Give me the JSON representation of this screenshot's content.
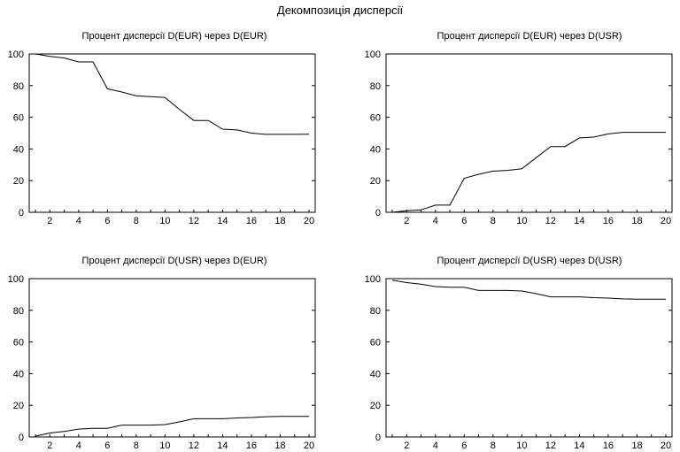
{
  "title": "Декомпозиція дисперсії",
  "chart_data": [
    {
      "type": "line",
      "title": "Процент дисперсії D(EUR) через D(EUR)",
      "xlabel": "",
      "ylabel": "",
      "xlim": [
        1,
        20
      ],
      "ylim": [
        0,
        100
      ],
      "x": [
        1,
        2,
        3,
        4,
        5,
        6,
        7,
        8,
        9,
        10,
        11,
        12,
        13,
        14,
        15,
        16,
        17,
        18,
        19,
        20
      ],
      "xticks": [
        "2",
        "4",
        "6",
        "8",
        "10",
        "12",
        "14",
        "16",
        "18",
        "20"
      ],
      "yticks": [
        "0",
        "20",
        "40",
        "60",
        "80",
        "100"
      ],
      "grid": false,
      "series": [
        {
          "values": [
            100,
            98.5,
            97.5,
            95,
            95,
            78,
            76,
            73.5,
            73,
            72.5,
            65,
            58,
            58,
            52.5,
            52,
            50,
            49.2,
            49.2,
            49.2,
            49.3
          ]
        }
      ]
    },
    {
      "type": "line",
      "title": "Процент дисперсії D(EUR) через D(USR)",
      "xlabel": "",
      "ylabel": "",
      "xlim": [
        1,
        20
      ],
      "ylim": [
        0,
        100
      ],
      "x": [
        1,
        2,
        3,
        4,
        5,
        6,
        7,
        8,
        9,
        10,
        11,
        12,
        13,
        14,
        15,
        16,
        17,
        18,
        19,
        20
      ],
      "xticks": [
        "2",
        "4",
        "6",
        "8",
        "10",
        "12",
        "14",
        "16",
        "18",
        "20"
      ],
      "yticks": [
        "0",
        "20",
        "40",
        "60",
        "80",
        "100"
      ],
      "grid": false,
      "series": [
        {
          "values": [
            0,
            1,
            1.5,
            4.5,
            4.5,
            21.5,
            24,
            26,
            26.5,
            27.5,
            34.5,
            41.5,
            41.5,
            47,
            47.5,
            49.5,
            50.5,
            50.5,
            50.5,
            50.5
          ]
        }
      ]
    },
    {
      "type": "line",
      "title": "Процент дисперсії D(USR) через D(EUR)",
      "xlabel": "",
      "ylabel": "",
      "xlim": [
        1,
        20
      ],
      "ylim": [
        0,
        100
      ],
      "x": [
        1,
        2,
        3,
        4,
        5,
        6,
        7,
        8,
        9,
        10,
        11,
        12,
        13,
        14,
        15,
        16,
        17,
        18,
        19,
        20
      ],
      "xticks": [
        "2",
        "4",
        "6",
        "8",
        "10",
        "12",
        "14",
        "16",
        "18",
        "20"
      ],
      "yticks": [
        "0",
        "20",
        "40",
        "60",
        "80",
        "100"
      ],
      "grid": false,
      "series": [
        {
          "values": [
            0.5,
            2.5,
            3.5,
            5,
            5.5,
            5.5,
            7.5,
            7.5,
            7.5,
            7.8,
            9.5,
            11.5,
            11.5,
            11.5,
            12,
            12.3,
            12.8,
            13,
            13,
            13
          ]
        }
      ]
    },
    {
      "type": "line",
      "title": "Процент дисперсії D(USR) через D(USR)",
      "xlabel": "",
      "ylabel": "",
      "xlim": [
        1,
        20
      ],
      "ylim": [
        0,
        100
      ],
      "x": [
        1,
        2,
        3,
        4,
        5,
        6,
        7,
        8,
        9,
        10,
        11,
        12,
        13,
        14,
        15,
        16,
        17,
        18,
        19,
        20
      ],
      "xticks": [
        "2",
        "4",
        "6",
        "8",
        "10",
        "12",
        "14",
        "16",
        "18",
        "20"
      ],
      "yticks": [
        "0",
        "20",
        "40",
        "60",
        "80",
        "100"
      ],
      "grid": false,
      "series": [
        {
          "values": [
            99,
            97.5,
            96.5,
            95,
            94.5,
            94.5,
            92.5,
            92.5,
            92.5,
            92.2,
            90.5,
            88.5,
            88.5,
            88.5,
            88,
            87.7,
            87.2,
            87,
            87,
            87
          ]
        }
      ]
    }
  ]
}
